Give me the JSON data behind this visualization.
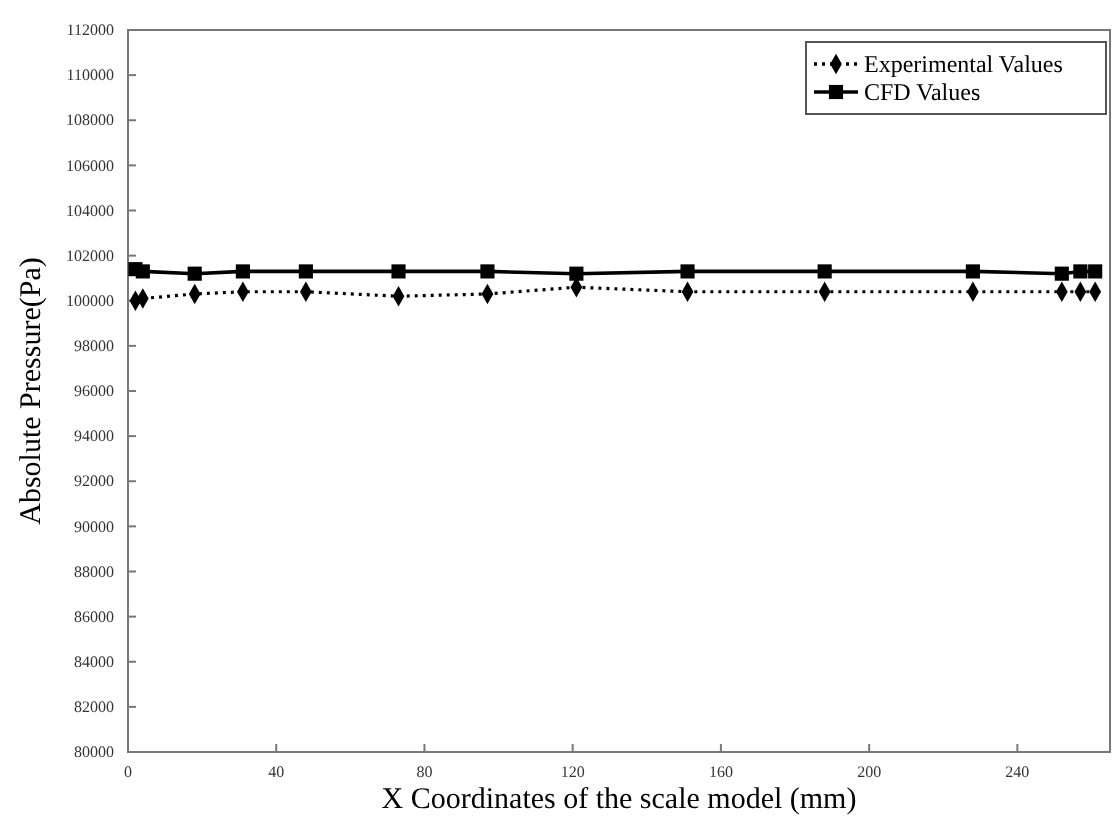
{
  "chart_data": {
    "type": "line",
    "xlabel": "X Coordinates of the scale model (mm)",
    "ylabel": "Absolute Pressure(Pa)",
    "xlim": [
      0,
      265
    ],
    "xticks": [
      0,
      40,
      80,
      120,
      160,
      200,
      240
    ],
    "ylim": [
      80000,
      112000
    ],
    "yticks": [
      80000,
      82000,
      84000,
      86000,
      88000,
      90000,
      92000,
      94000,
      96000,
      98000,
      100000,
      102000,
      104000,
      106000,
      108000,
      110000,
      112000
    ],
    "legend": "top right",
    "grid": false,
    "series": [
      {
        "name": "Experimental Values",
        "color": "#000000",
        "marker": "diamond",
        "line_style": "dotted",
        "x": [
          2,
          4,
          18,
          31,
          48,
          73,
          97,
          121,
          151,
          188,
          228,
          252,
          257,
          261
        ],
        "values": [
          100000,
          100100,
          100300,
          100400,
          100400,
          100200,
          100300,
          100600,
          100400,
          100400,
          100400,
          100400,
          100400,
          100400
        ]
      },
      {
        "name": "CFD Values",
        "color": "#000000",
        "marker": "square",
        "line_style": "solid",
        "x": [
          2,
          4,
          18,
          31,
          48,
          73,
          97,
          121,
          151,
          188,
          228,
          252,
          257,
          261
        ],
        "values": [
          101400,
          101300,
          101200,
          101300,
          101300,
          101300,
          101300,
          101200,
          101300,
          101300,
          101300,
          101200,
          101300,
          101300
        ]
      }
    ]
  }
}
